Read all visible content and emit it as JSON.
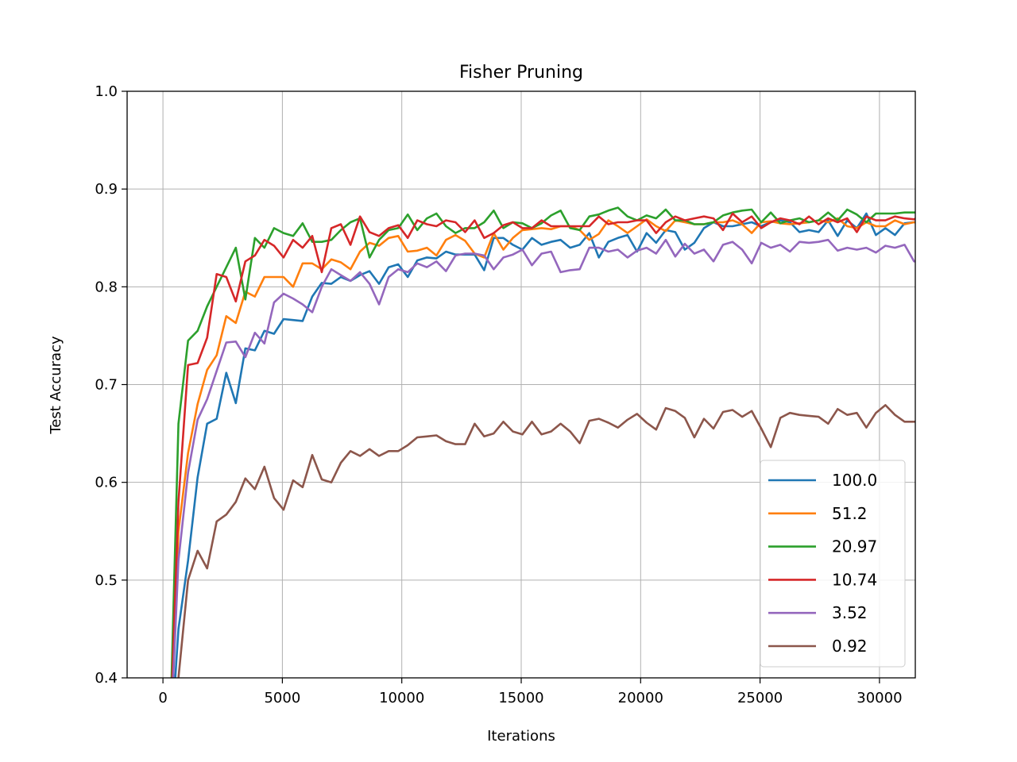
{
  "chart_data": {
    "type": "line",
    "title": "Fisher Pruning",
    "xlabel": "Iterations",
    "ylabel": "Test Accuracy",
    "xlim": [
      -1500,
      31500
    ],
    "ylim": [
      0.4,
      1.0
    ],
    "xticks": [
      0,
      5000,
      10000,
      15000,
      20000,
      25000,
      30000
    ],
    "xtick_labels": [
      "0",
      "5000",
      "10000",
      "15000",
      "20000",
      "25000",
      "30000"
    ],
    "yticks": [
      0.4,
      0.5,
      0.6,
      0.7,
      0.8,
      0.9,
      1.0
    ],
    "ytick_labels": [
      "0.4",
      "0.5",
      "0.6",
      "0.7",
      "0.8",
      "0.9",
      "1.0"
    ],
    "grid": true,
    "legend_position": "lower-right",
    "x_start": 250,
    "x_step": 400,
    "series": [
      {
        "name": "100.0",
        "color": "#1f77b4",
        "values": [
          0.3,
          0.45,
          0.52,
          0.605,
          0.66,
          0.665,
          0.712,
          0.681,
          0.737,
          0.735,
          0.755,
          0.752,
          0.767,
          0.766,
          0.765,
          0.79,
          0.804,
          0.803,
          0.81,
          0.806,
          0.812,
          0.816,
          0.803,
          0.82,
          0.823,
          0.81,
          0.827,
          0.83,
          0.829,
          0.836,
          0.833,
          0.833,
          0.833,
          0.817,
          0.85,
          0.85,
          0.843,
          0.838,
          0.85,
          0.843,
          0.846,
          0.848,
          0.84,
          0.843,
          0.855,
          0.83,
          0.846,
          0.85,
          0.853,
          0.836,
          0.855,
          0.845,
          0.858,
          0.856,
          0.838,
          0.845,
          0.86,
          0.866,
          0.862,
          0.862,
          0.864,
          0.866,
          0.862,
          0.866,
          0.868,
          0.866,
          0.856,
          0.858,
          0.856,
          0.868,
          0.852,
          0.868,
          0.86,
          0.875,
          0.853,
          0.86,
          0.853,
          0.865,
          0.866,
          0.868
        ]
      },
      {
        "name": "51.2",
        "color": "#ff7f0e",
        "values": [
          0.3,
          0.55,
          0.63,
          0.68,
          0.715,
          0.73,
          0.77,
          0.763,
          0.795,
          0.79,
          0.81,
          0.81,
          0.81,
          0.8,
          0.824,
          0.824,
          0.818,
          0.828,
          0.825,
          0.818,
          0.836,
          0.845,
          0.842,
          0.85,
          0.852,
          0.836,
          0.837,
          0.84,
          0.832,
          0.848,
          0.853,
          0.847,
          0.834,
          0.83,
          0.855,
          0.838,
          0.85,
          0.858,
          0.859,
          0.86,
          0.859,
          0.862,
          0.862,
          0.858,
          0.848,
          0.854,
          0.868,
          0.862,
          0.855,
          0.862,
          0.869,
          0.862,
          0.857,
          0.868,
          0.866,
          0.864,
          0.864,
          0.866,
          0.866,
          0.868,
          0.864,
          0.855,
          0.866,
          0.867,
          0.865,
          0.864,
          0.865,
          0.866,
          0.868,
          0.866,
          0.87,
          0.862,
          0.86,
          0.866,
          0.862,
          0.862,
          0.868,
          0.864,
          0.866,
          0.864
        ]
      },
      {
        "name": "20.97",
        "color": "#2ca02c",
        "values": [
          0.3,
          0.66,
          0.745,
          0.755,
          0.78,
          0.8,
          0.82,
          0.84,
          0.787,
          0.85,
          0.84,
          0.86,
          0.855,
          0.852,
          0.865,
          0.846,
          0.846,
          0.848,
          0.858,
          0.866,
          0.87,
          0.83,
          0.848,
          0.858,
          0.86,
          0.874,
          0.858,
          0.87,
          0.875,
          0.862,
          0.855,
          0.86,
          0.86,
          0.866,
          0.878,
          0.86,
          0.866,
          0.865,
          0.86,
          0.865,
          0.873,
          0.878,
          0.86,
          0.858,
          0.872,
          0.874,
          0.878,
          0.881,
          0.872,
          0.868,
          0.873,
          0.87,
          0.879,
          0.868,
          0.868,
          0.864,
          0.864,
          0.866,
          0.873,
          0.876,
          0.878,
          0.879,
          0.866,
          0.876,
          0.865,
          0.868,
          0.87,
          0.866,
          0.868,
          0.876,
          0.868,
          0.879,
          0.874,
          0.866,
          0.875,
          0.875,
          0.875,
          0.876,
          0.876,
          0.876
        ]
      },
      {
        "name": "10.74",
        "color": "#d62728",
        "values": [
          0.3,
          0.58,
          0.72,
          0.722,
          0.748,
          0.813,
          0.81,
          0.785,
          0.826,
          0.832,
          0.848,
          0.842,
          0.83,
          0.848,
          0.84,
          0.852,
          0.815,
          0.86,
          0.864,
          0.843,
          0.872,
          0.856,
          0.852,
          0.86,
          0.863,
          0.85,
          0.868,
          0.864,
          0.862,
          0.868,
          0.866,
          0.856,
          0.868,
          0.85,
          0.855,
          0.863,
          0.866,
          0.86,
          0.86,
          0.868,
          0.862,
          0.862,
          0.862,
          0.862,
          0.862,
          0.872,
          0.864,
          0.866,
          0.866,
          0.868,
          0.868,
          0.855,
          0.866,
          0.872,
          0.868,
          0.87,
          0.872,
          0.87,
          0.858,
          0.875,
          0.866,
          0.872,
          0.86,
          0.866,
          0.87,
          0.868,
          0.864,
          0.872,
          0.864,
          0.87,
          0.866,
          0.87,
          0.856,
          0.872,
          0.868,
          0.868,
          0.872,
          0.87,
          0.869,
          0.874
        ]
      },
      {
        "name": "3.52",
        "color": "#9467bd",
        "values": [
          0.3,
          0.52,
          0.61,
          0.664,
          0.685,
          0.714,
          0.743,
          0.744,
          0.728,
          0.753,
          0.742,
          0.784,
          0.793,
          0.788,
          0.782,
          0.774,
          0.8,
          0.818,
          0.812,
          0.806,
          0.815,
          0.803,
          0.782,
          0.81,
          0.818,
          0.815,
          0.824,
          0.82,
          0.826,
          0.816,
          0.832,
          0.834,
          0.834,
          0.832,
          0.818,
          0.83,
          0.833,
          0.838,
          0.822,
          0.834,
          0.836,
          0.815,
          0.817,
          0.818,
          0.84,
          0.84,
          0.836,
          0.838,
          0.83,
          0.837,
          0.84,
          0.834,
          0.848,
          0.831,
          0.844,
          0.834,
          0.838,
          0.826,
          0.843,
          0.846,
          0.838,
          0.824,
          0.845,
          0.84,
          0.843,
          0.836,
          0.846,
          0.845,
          0.846,
          0.848,
          0.837,
          0.84,
          0.838,
          0.84,
          0.835,
          0.842,
          0.84,
          0.843,
          0.826,
          0.826
        ]
      },
      {
        "name": "0.92",
        "color": "#8c564b",
        "values": [
          0.3,
          0.4,
          0.5,
          0.53,
          0.512,
          0.56,
          0.567,
          0.58,
          0.604,
          0.593,
          0.616,
          0.584,
          0.572,
          0.602,
          0.595,
          0.628,
          0.603,
          0.6,
          0.62,
          0.632,
          0.627,
          0.634,
          0.627,
          0.632,
          0.632,
          0.638,
          0.646,
          0.647,
          0.648,
          0.642,
          0.639,
          0.639,
          0.66,
          0.647,
          0.65,
          0.662,
          0.652,
          0.649,
          0.662,
          0.649,
          0.652,
          0.66,
          0.652,
          0.64,
          0.663,
          0.665,
          0.661,
          0.656,
          0.664,
          0.67,
          0.661,
          0.654,
          0.676,
          0.673,
          0.666,
          0.646,
          0.665,
          0.655,
          0.672,
          0.674,
          0.667,
          0.673,
          0.655,
          0.636,
          0.666,
          0.671,
          0.669,
          0.668,
          0.667,
          0.66,
          0.675,
          0.669,
          0.671,
          0.656,
          0.671,
          0.679,
          0.669,
          0.662,
          0.662,
          0.662
        ]
      }
    ]
  }
}
